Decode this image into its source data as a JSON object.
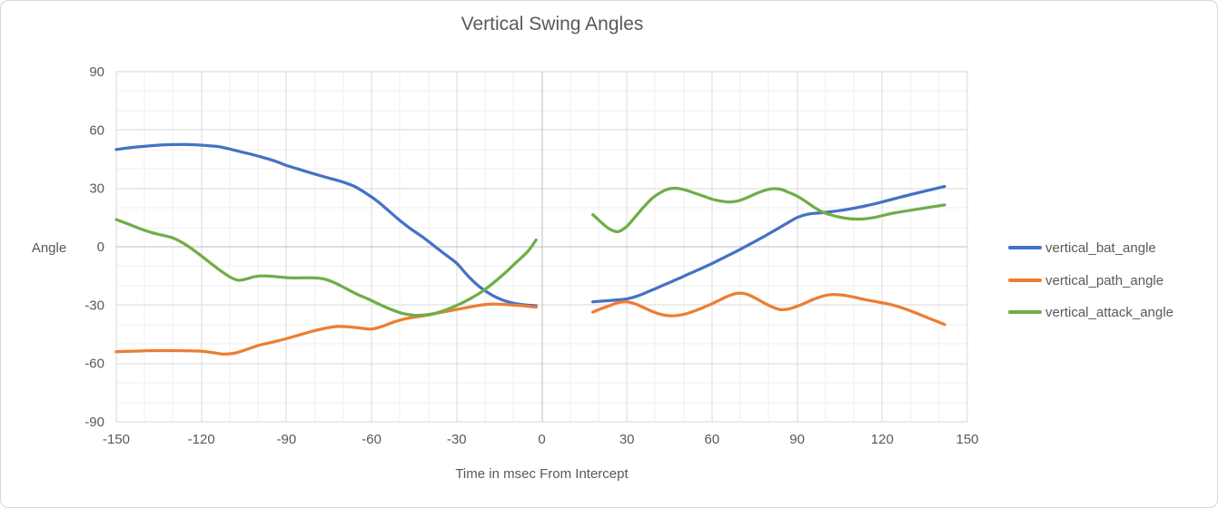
{
  "chart_data": {
    "type": "line",
    "title": "Vertical Swing Angles",
    "xlabel": "Time in msec From Intercept",
    "ylabel": "Angle",
    "xlim": [
      -150,
      150
    ],
    "ylim": [
      -90,
      90
    ],
    "x_major_step": 30,
    "x_minor_step": 10,
    "y_major_step": 30,
    "y_minor_step": 10,
    "x_ticks": [
      -150,
      -120,
      -90,
      -60,
      -30,
      0,
      30,
      60,
      90,
      120,
      150
    ],
    "y_ticks": [
      90,
      60,
      30,
      0,
      -30,
      -60,
      -90
    ],
    "grid": true,
    "legend_position": "right",
    "colors": {
      "grid_minor": "#EFEFEF",
      "grid_major": "#D9D9D9",
      "axis_zero_line": "#BFBFBF",
      "plot_border": "#D9D9D9",
      "text": "#595959"
    },
    "note": "data gap between x=-2 and x=18 (no values around intercept)",
    "series": [
      {
        "name": "vertical_bat_angle",
        "color": "#4472C4",
        "segments": [
          [
            [
              -150,
              50
            ],
            [
              -146,
              50.8
            ],
            [
              -142,
              51.4
            ],
            [
              -138,
              51.9
            ],
            [
              -134,
              52.3
            ],
            [
              -130,
              52.5
            ],
            [
              -126,
              52.6
            ],
            [
              -122,
              52.4
            ],
            [
              -118,
              52
            ],
            [
              -114,
              51.5
            ],
            [
              -110,
              50.2
            ],
            [
              -106,
              48.8
            ],
            [
              -102,
              47.4
            ],
            [
              -98,
              45.8
            ],
            [
              -94,
              44
            ],
            [
              -90,
              41.8
            ],
            [
              -86,
              40
            ],
            [
              -82,
              38.2
            ],
            [
              -78,
              36.5
            ],
            [
              -74,
              34.9
            ],
            [
              -70,
              33.2
            ],
            [
              -66,
              31
            ],
            [
              -62,
              27.5
            ],
            [
              -58,
              23.5
            ],
            [
              -54,
              18.5
            ],
            [
              -50,
              13.5
            ],
            [
              -46,
              9
            ],
            [
              -42,
              5
            ],
            [
              -38,
              0.5
            ],
            [
              -34,
              -4
            ],
            [
              -30,
              -8.5
            ],
            [
              -26,
              -15
            ],
            [
              -22,
              -20.5
            ],
            [
              -18,
              -24.5
            ],
            [
              -14,
              -27.3
            ],
            [
              -10,
              -29
            ],
            [
              -6,
              -29.9
            ],
            [
              -2,
              -30.3
            ]
          ],
          [
            [
              18,
              -28.3
            ],
            [
              22,
              -27.9
            ],
            [
              26,
              -27.4
            ],
            [
              30,
              -26.8
            ],
            [
              34,
              -25.2
            ],
            [
              38,
              -22.8
            ],
            [
              42,
              -20.3
            ],
            [
              46,
              -17.8
            ],
            [
              50,
              -15.2
            ],
            [
              54,
              -12.6
            ],
            [
              58,
              -10
            ],
            [
              62,
              -7.2
            ],
            [
              66,
              -4.3
            ],
            [
              70,
              -1.3
            ],
            [
              74,
              1.8
            ],
            [
              78,
              5
            ],
            [
              82,
              8.3
            ],
            [
              86,
              11.7
            ],
            [
              90,
              15
            ],
            [
              94,
              16.8
            ],
            [
              98,
              17.4
            ],
            [
              102,
              18
            ],
            [
              106,
              18.8
            ],
            [
              110,
              19.8
            ],
            [
              114,
              21
            ],
            [
              118,
              22.3
            ],
            [
              122,
              23.8
            ],
            [
              126,
              25.3
            ],
            [
              130,
              26.8
            ],
            [
              134,
              28.2
            ],
            [
              138,
              29.6
            ],
            [
              142,
              31
            ]
          ]
        ]
      },
      {
        "name": "vertical_path_angle",
        "color": "#ED7D31",
        "segments": [
          [
            [
              -150,
              -54
            ],
            [
              -145,
              -53.7
            ],
            [
              -140,
              -53.5
            ],
            [
              -135,
              -53.4
            ],
            [
              -130,
              -53.4
            ],
            [
              -125,
              -53.5
            ],
            [
              -120,
              -53.7
            ],
            [
              -116,
              -54.4
            ],
            [
              -112,
              -55.2
            ],
            [
              -108,
              -54.6
            ],
            [
              -104,
              -52.8
            ],
            [
              -100,
              -50.8
            ],
            [
              -96,
              -49.4
            ],
            [
              -92,
              -48
            ],
            [
              -88,
              -46.4
            ],
            [
              -84,
              -44.7
            ],
            [
              -80,
              -43.1
            ],
            [
              -76,
              -41.8
            ],
            [
              -72,
              -41
            ],
            [
              -68,
              -41.2
            ],
            [
              -64,
              -41.8
            ],
            [
              -60,
              -42.3
            ],
            [
              -56,
              -40.8
            ],
            [
              -52,
              -38.6
            ],
            [
              -48,
              -37
            ],
            [
              -44,
              -36
            ],
            [
              -40,
              -35.1
            ],
            [
              -36,
              -33.9
            ],
            [
              -32,
              -32.8
            ],
            [
              -28,
              -31.7
            ],
            [
              -24,
              -30.6
            ],
            [
              -20,
              -29.7
            ],
            [
              -16,
              -29.5
            ],
            [
              -12,
              -29.8
            ],
            [
              -8,
              -30.2
            ],
            [
              -5,
              -30.6
            ],
            [
              -2,
              -31
            ]
          ],
          [
            [
              18,
              -33.6
            ],
            [
              21,
              -31.8
            ],
            [
              24,
              -30.2
            ],
            [
              27,
              -28.7
            ],
            [
              30,
              -28.3
            ],
            [
              33,
              -29.4
            ],
            [
              36,
              -31.3
            ],
            [
              39,
              -33.3
            ],
            [
              42,
              -34.8
            ],
            [
              45,
              -35.5
            ],
            [
              48,
              -35.3
            ],
            [
              51,
              -34.4
            ],
            [
              54,
              -32.9
            ],
            [
              57,
              -31.2
            ],
            [
              60,
              -29.3
            ],
            [
              63,
              -27.2
            ],
            [
              66,
              -25.2
            ],
            [
              69,
              -23.9
            ],
            [
              72,
              -24.3
            ],
            [
              75,
              -26.2
            ],
            [
              78,
              -28.6
            ],
            [
              81,
              -30.8
            ],
            [
              84,
              -32.3
            ],
            [
              87,
              -32
            ],
            [
              90,
              -30.6
            ],
            [
              93,
              -28.8
            ],
            [
              96,
              -26.9
            ],
            [
              99,
              -25.4
            ],
            [
              102,
              -24.6
            ],
            [
              105,
              -24.7
            ],
            [
              108,
              -25.3
            ],
            [
              111,
              -26.2
            ],
            [
              114,
              -27.2
            ],
            [
              117,
              -28
            ],
            [
              120,
              -28.8
            ],
            [
              124,
              -30.1
            ],
            [
              128,
              -31.9
            ],
            [
              132,
              -34.1
            ],
            [
              136,
              -36.5
            ],
            [
              139,
              -38.2
            ],
            [
              142,
              -40
            ]
          ]
        ]
      },
      {
        "name": "vertical_attack_angle",
        "color": "#70AD47",
        "segments": [
          [
            [
              -150,
              14
            ],
            [
              -146,
              11.8
            ],
            [
              -142,
              9.5
            ],
            [
              -138,
              7.5
            ],
            [
              -134,
              6
            ],
            [
              -130,
              4.5
            ],
            [
              -126,
              1.5
            ],
            [
              -122,
              -2.5
            ],
            [
              -118,
              -7
            ],
            [
              -114,
              -11.5
            ],
            [
              -110,
              -15.5
            ],
            [
              -107,
              -17.2
            ],
            [
              -104,
              -16.5
            ],
            [
              -101,
              -15.3
            ],
            [
              -97,
              -15
            ],
            [
              -93,
              -15.5
            ],
            [
              -89,
              -16
            ],
            [
              -85,
              -16
            ],
            [
              -81,
              -16
            ],
            [
              -77,
              -16.5
            ],
            [
              -73,
              -18.5
            ],
            [
              -69,
              -21.5
            ],
            [
              -65,
              -24.5
            ],
            [
              -61,
              -27
            ],
            [
              -57,
              -29.8
            ],
            [
              -53,
              -32.3
            ],
            [
              -49,
              -34.3
            ],
            [
              -45,
              -35.2
            ],
            [
              -41,
              -35
            ],
            [
              -37,
              -34
            ],
            [
              -33,
              -32
            ],
            [
              -29,
              -29.5
            ],
            [
              -25,
              -26.5
            ],
            [
              -21,
              -23
            ],
            [
              -17,
              -18.5
            ],
            [
              -13,
              -13.5
            ],
            [
              -9,
              -8
            ],
            [
              -5,
              -2.5
            ],
            [
              -2,
              3.5
            ]
          ],
          [
            [
              18,
              16.5
            ],
            [
              21,
              12.5
            ],
            [
              24,
              9
            ],
            [
              27,
              7.8
            ],
            [
              30,
              10.5
            ],
            [
              33,
              15.5
            ],
            [
              36,
              20.5
            ],
            [
              39,
              25
            ],
            [
              42,
              28
            ],
            [
              45,
              29.8
            ],
            [
              48,
              30
            ],
            [
              51,
              29
            ],
            [
              54,
              27.5
            ],
            [
              57,
              26
            ],
            [
              60,
              24.5
            ],
            [
              63,
              23.5
            ],
            [
              66,
              23
            ],
            [
              69,
              23.5
            ],
            [
              72,
              25
            ],
            [
              75,
              27
            ],
            [
              78,
              28.7
            ],
            [
              81,
              29.8
            ],
            [
              84,
              29.6
            ],
            [
              87,
              28
            ],
            [
              90,
              26
            ],
            [
              93,
              23.3
            ],
            [
              96,
              20.3
            ],
            [
              99,
              17.8
            ],
            [
              102,
              16.3
            ],
            [
              105,
              15.2
            ],
            [
              108,
              14.5
            ],
            [
              111,
              14.2
            ],
            [
              114,
              14.4
            ],
            [
              117,
              15
            ],
            [
              120,
              16
            ],
            [
              123,
              17
            ],
            [
              126,
              17.8
            ],
            [
              129,
              18.5
            ],
            [
              132,
              19.2
            ],
            [
              135,
              19.9
            ],
            [
              138,
              20.6
            ],
            [
              142,
              21.5
            ]
          ]
        ]
      }
    ]
  },
  "legend": {
    "items": [
      {
        "label": "vertical_bat_angle",
        "color": "#4472C4"
      },
      {
        "label": "vertical_path_angle",
        "color": "#ED7D31"
      },
      {
        "label": "vertical_attack_angle",
        "color": "#70AD47"
      }
    ]
  }
}
